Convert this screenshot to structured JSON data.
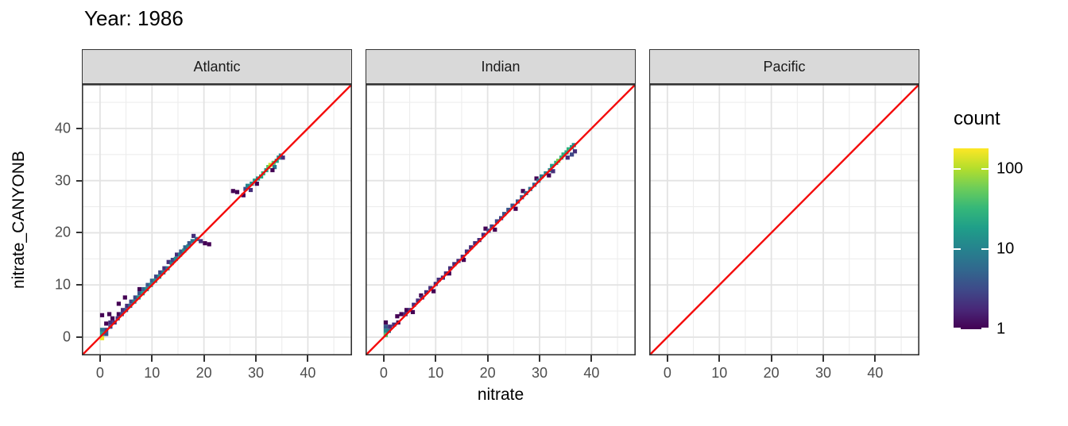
{
  "title": "Year: 1986",
  "axes": {
    "x": {
      "title": "nitrate",
      "ticks": [
        0,
        10,
        20,
        30,
        40
      ],
      "range": [
        -3.5,
        48.5
      ]
    },
    "y": {
      "title": "nitrate_CANYONB",
      "ticks": [
        0,
        10,
        20,
        30,
        40
      ],
      "range": [
        -3.5,
        48.5
      ]
    }
  },
  "legend": {
    "title": "count",
    "tick_values": [
      100,
      10,
      1
    ],
    "scale": "log10",
    "max_count": 180
  },
  "colors": {
    "reference_line": "#F40B0B",
    "strip_background": "#D9D9D9",
    "panel_border": "#333333",
    "grid_major": "#E3E3E3",
    "grid_minor": "#EDEDED",
    "axis_text": "#4D4D4D",
    "viridis_low": "#440154",
    "viridis_mid": "#26828E",
    "viridis_high": "#FDE725"
  },
  "chart_data": {
    "type": "heatmap",
    "subtype": "bin2d_scatter",
    "title": "Year: 1986",
    "xlabel": "nitrate",
    "ylabel": "nitrate_CANYONB",
    "xlim": [
      -3.5,
      48.5
    ],
    "ylim": [
      -3.5,
      48.5
    ],
    "grid": {
      "major": [
        0,
        10,
        20,
        30,
        40
      ],
      "minor": [
        5,
        15,
        25,
        35,
        45
      ]
    },
    "bin_width": 0.8,
    "reference_line": {
      "type": "abline",
      "slope": 1,
      "intercept": 0
    },
    "count_scale": {
      "type": "log10",
      "min": 1,
      "max": 180,
      "legend_ticks": [
        1,
        10,
        100
      ]
    },
    "legend_position": "right",
    "facets": [
      {
        "label": "Atlantic",
        "bins": [
          [
            0.4,
            -0.2,
            160
          ],
          [
            0.4,
            0.6,
            20
          ],
          [
            1.2,
            0.6,
            4
          ],
          [
            0.4,
            1.4,
            8
          ],
          [
            1.2,
            1.4,
            3
          ],
          [
            2.0,
            2.0,
            3
          ],
          [
            1.2,
            2.6,
            1
          ],
          [
            2.0,
            2.8,
            2
          ],
          [
            0.4,
            4.2,
            1
          ],
          [
            1.8,
            4.4,
            1
          ],
          [
            2.4,
            3.6,
            1
          ],
          [
            2.8,
            2.8,
            2
          ],
          [
            3.4,
            3.6,
            2
          ],
          [
            3.6,
            4.4,
            1
          ],
          [
            3.6,
            6.4,
            1
          ],
          [
            4.2,
            4.4,
            3
          ],
          [
            4.4,
            5.2,
            2
          ],
          [
            5.0,
            5.2,
            4
          ],
          [
            5.2,
            6.0,
            2
          ],
          [
            4.8,
            7.6,
            1
          ],
          [
            5.8,
            6.0,
            6
          ],
          [
            6.0,
            6.8,
            3
          ],
          [
            6.6,
            6.8,
            10
          ],
          [
            6.8,
            7.6,
            3
          ],
          [
            7.4,
            7.6,
            14
          ],
          [
            7.6,
            8.4,
            4
          ],
          [
            7.6,
            9.2,
            1
          ],
          [
            8.2,
            8.4,
            16
          ],
          [
            8.4,
            9.2,
            5
          ],
          [
            9.0,
            9.2,
            14
          ],
          [
            9.2,
            10.0,
            4
          ],
          [
            9.8,
            10.0,
            12
          ],
          [
            10.0,
            10.8,
            5
          ],
          [
            10.6,
            10.8,
            14
          ],
          [
            10.8,
            11.6,
            3
          ],
          [
            11.4,
            11.6,
            12
          ],
          [
            11.6,
            12.4,
            3
          ],
          [
            12.2,
            12.4,
            9
          ],
          [
            12.4,
            13.2,
            2
          ],
          [
            13.0,
            13.2,
            8
          ],
          [
            13.2,
            14.4,
            2
          ],
          [
            13.8,
            14.2,
            10
          ],
          [
            14.0,
            14.8,
            3
          ],
          [
            14.6,
            15.0,
            12
          ],
          [
            14.8,
            15.8,
            2
          ],
          [
            15.4,
            15.8,
            10
          ],
          [
            15.6,
            16.4,
            4
          ],
          [
            16.2,
            16.6,
            14
          ],
          [
            16.4,
            17.2,
            5
          ],
          [
            17.0,
            17.4,
            12
          ],
          [
            17.2,
            18.0,
            4
          ],
          [
            17.8,
            18.4,
            8
          ],
          [
            18.0,
            19.4,
            2
          ],
          [
            18.6,
            18.8,
            6
          ],
          [
            19.4,
            18.4,
            2
          ],
          [
            20.2,
            18.0,
            1
          ],
          [
            21.0,
            17.8,
            1
          ],
          [
            25.6,
            28.0,
            1
          ],
          [
            26.4,
            27.8,
            1
          ],
          [
            27.6,
            27.2,
            1
          ],
          [
            28.0,
            28.4,
            3
          ],
          [
            28.4,
            29.0,
            10
          ],
          [
            29.0,
            28.2,
            2
          ],
          [
            29.2,
            29.4,
            14
          ],
          [
            29.8,
            30.0,
            18
          ],
          [
            30.2,
            29.4,
            1
          ],
          [
            30.4,
            30.4,
            16
          ],
          [
            31.0,
            30.8,
            22
          ],
          [
            31.4,
            31.4,
            30
          ],
          [
            32.0,
            32.0,
            20
          ],
          [
            32.4,
            32.6,
            45
          ],
          [
            32.8,
            33.0,
            120
          ],
          [
            33.4,
            33.4,
            45
          ],
          [
            33.6,
            32.6,
            8
          ],
          [
            34.0,
            33.8,
            20
          ],
          [
            34.4,
            34.4,
            14
          ],
          [
            34.8,
            34.8,
            10
          ],
          [
            35.2,
            34.4,
            2
          ],
          [
            33.2,
            32.0,
            1
          ]
        ]
      },
      {
        "label": "Indian",
        "bins": [
          [
            0.4,
            0.4,
            45
          ],
          [
            0.4,
            1.2,
            12
          ],
          [
            0.4,
            2.0,
            4
          ],
          [
            0.4,
            2.8,
            1
          ],
          [
            1.0,
            1.2,
            8
          ],
          [
            1.2,
            2.0,
            2
          ],
          [
            2.0,
            2.4,
            2
          ],
          [
            2.8,
            2.8,
            1
          ],
          [
            2.6,
            4.0,
            1
          ],
          [
            3.4,
            4.4,
            1
          ],
          [
            4.2,
            4.4,
            2
          ],
          [
            4.4,
            5.2,
            1
          ],
          [
            5.0,
            5.2,
            2
          ],
          [
            5.6,
            4.8,
            1
          ],
          [
            5.8,
            6.2,
            2
          ],
          [
            6.6,
            7.0,
            2
          ],
          [
            7.2,
            8.0,
            1
          ],
          [
            7.4,
            7.6,
            2
          ],
          [
            8.2,
            8.6,
            2
          ],
          [
            9.0,
            9.4,
            2
          ],
          [
            9.6,
            8.8,
            1
          ],
          [
            10.0,
            10.2,
            2
          ],
          [
            10.6,
            11.0,
            2
          ],
          [
            11.4,
            11.4,
            2
          ],
          [
            12.0,
            12.2,
            2
          ],
          [
            12.6,
            12.2,
            1
          ],
          [
            12.8,
            13.2,
            2
          ],
          [
            13.6,
            14.0,
            2
          ],
          [
            14.4,
            14.6,
            2
          ],
          [
            15.2,
            15.4,
            2
          ],
          [
            15.4,
            14.8,
            1
          ],
          [
            16.0,
            16.4,
            2
          ],
          [
            16.8,
            17.2,
            2
          ],
          [
            17.6,
            18.0,
            2
          ],
          [
            18.4,
            18.6,
            2
          ],
          [
            19.2,
            19.6,
            2
          ],
          [
            19.6,
            20.8,
            1
          ],
          [
            20.2,
            20.4,
            3
          ],
          [
            20.8,
            21.2,
            3
          ],
          [
            21.4,
            20.6,
            1
          ],
          [
            21.8,
            22.2,
            3
          ],
          [
            22.6,
            22.8,
            3
          ],
          [
            23.2,
            23.6,
            4
          ],
          [
            24.0,
            24.4,
            4
          ],
          [
            24.8,
            25.2,
            4
          ],
          [
            25.4,
            24.6,
            1
          ],
          [
            25.8,
            26.0,
            4
          ],
          [
            26.6,
            26.8,
            4
          ],
          [
            26.8,
            28.0,
            1
          ],
          [
            27.4,
            27.6,
            5
          ],
          [
            28.2,
            28.4,
            6
          ],
          [
            29.0,
            29.2,
            5
          ],
          [
            29.4,
            30.4,
            1
          ],
          [
            29.8,
            30.0,
            7
          ],
          [
            30.4,
            30.8,
            9
          ],
          [
            31.2,
            31.4,
            10
          ],
          [
            32.0,
            32.0,
            12
          ],
          [
            32.4,
            32.8,
            18
          ],
          [
            32.6,
            31.8,
            2
          ],
          [
            33.2,
            33.4,
            25
          ],
          [
            33.6,
            33.8,
            60
          ],
          [
            34.2,
            34.4,
            30
          ],
          [
            34.6,
            35.0,
            25
          ],
          [
            35.2,
            35.4,
            20
          ],
          [
            35.6,
            36.0,
            28
          ],
          [
            36.2,
            36.4,
            18
          ],
          [
            36.6,
            36.8,
            12
          ],
          [
            36.8,
            35.6,
            2
          ],
          [
            36.2,
            35.0,
            3
          ],
          [
            35.4,
            34.4,
            2
          ],
          [
            31.8,
            31.0,
            1
          ]
        ]
      },
      {
        "label": "Pacific",
        "bins": []
      }
    ]
  }
}
